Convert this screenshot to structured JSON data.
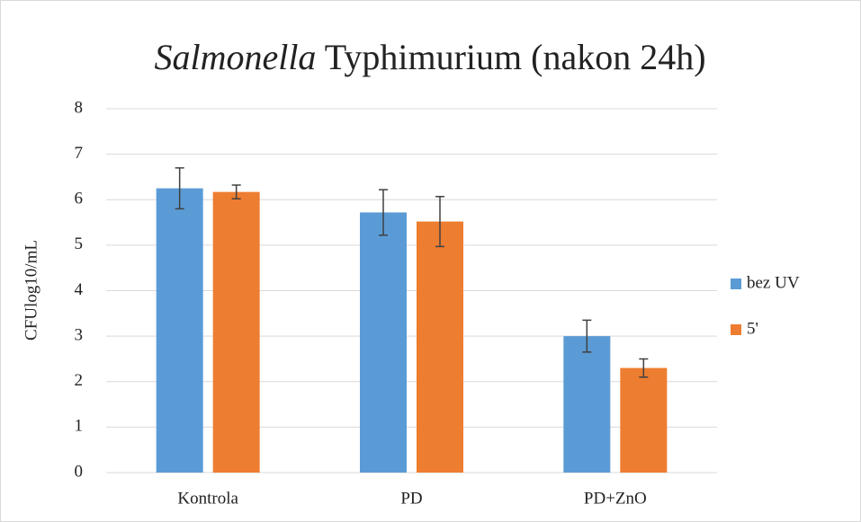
{
  "chart_data": {
    "type": "bar",
    "title": {
      "italic": "Salmonella",
      "text": "Typhimurium (nakon 24h)"
    },
    "y_label": "CFUlog10/mL",
    "categories": [
      "Kontrola",
      "PD",
      "PD+ZnO"
    ],
    "series": [
      {
        "name": "bez UV",
        "color": "#5b9bd5",
        "values": [
          6.25,
          5.72,
          3.0
        ],
        "errors": [
          0.45,
          0.5,
          0.35
        ]
      },
      {
        "name": "5'",
        "color": "#ed7d31",
        "values": [
          6.17,
          5.52,
          2.3
        ],
        "errors": [
          0.15,
          0.55,
          0.2
        ]
      }
    ],
    "ylim": [
      0,
      8
    ],
    "yticks": [
      0,
      1,
      2,
      3,
      4,
      5,
      6,
      7,
      8
    ],
    "grid": true,
    "legend": "right"
  }
}
